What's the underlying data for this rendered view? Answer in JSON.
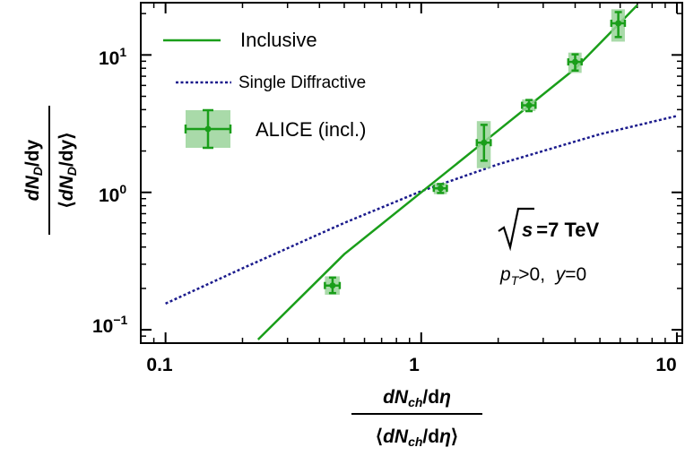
{
  "chart_data": {
    "type": "scatter",
    "xscale": "log",
    "yscale": "log",
    "xlim": [
      0.08,
      10.5
    ],
    "ylim": [
      0.08,
      24
    ],
    "x_ticks": [
      {
        "value": 0.1,
        "label": "0.1"
      },
      {
        "value": 1,
        "label": "1"
      },
      {
        "value": 10,
        "label": "10"
      }
    ],
    "y_ticks": [
      {
        "value": 0.1,
        "base": "10",
        "exp": "−1"
      },
      {
        "value": 1,
        "base": "10",
        "exp": "0"
      },
      {
        "value": 10,
        "base": "10",
        "exp": "1"
      }
    ],
    "xlabel": {
      "numerator": {
        "d": "dN",
        "sub": "ch",
        "rest": "/d",
        "sym": "η"
      },
      "denominator": {
        "open": "⟨",
        "d": "dN",
        "sub": "ch",
        "rest": "/d",
        "sym": "η",
        "close": "⟩"
      }
    },
    "ylabel": {
      "numerator": {
        "d": "dN",
        "sub": "D",
        "rest": "/dy"
      },
      "denominator": {
        "open": "⟨",
        "d": "dN",
        "sub": "D",
        "rest": "/dy",
        "close": "⟩"
      }
    },
    "series": [
      {
        "name": "Inclusive",
        "kind": "line",
        "color": "#1a9e1a",
        "x": [
          0.23,
          0.5,
          1.0,
          2.0,
          4.0,
          7.0
        ],
        "y": [
          0.085,
          0.355,
          1.0,
          2.82,
          7.95,
          23.0
        ]
      },
      {
        "name": "Single Diffractive",
        "kind": "dashed-line",
        "color": "#1a1a8c",
        "x": [
          0.1,
          0.2,
          0.5,
          1.0,
          2.0,
          5.0,
          10.0
        ],
        "y": [
          0.155,
          0.28,
          0.6,
          1.02,
          1.6,
          2.65,
          3.6
        ]
      },
      {
        "name": "ALICE (incl.)",
        "kind": "points",
        "color": "#1a9e1a",
        "box_color": "#9ad49a",
        "points": [
          {
            "x": 0.45,
            "y": 0.21,
            "xerr": 0.03,
            "yerr_lo": 0.025,
            "yerr_hi": 0.03,
            "sys_lo": 0.03,
            "sys_hi": 0.035
          },
          {
            "x": 1.19,
            "y": 1.07,
            "xerr": 0.07,
            "yerr_lo": 0.08,
            "yerr_hi": 0.08,
            "sys_lo": 0.1,
            "sys_hi": 0.1
          },
          {
            "x": 1.76,
            "y": 2.3,
            "xerr": 0.11,
            "yerr_lo": 0.6,
            "yerr_hi": 0.8,
            "sys_lo": 0.8,
            "sys_hi": 1.0
          },
          {
            "x": 2.64,
            "y": 4.3,
            "xerr": 0.16,
            "yerr_lo": 0.4,
            "yerr_hi": 0.4,
            "sys_lo": 0.4,
            "sys_hi": 0.45
          },
          {
            "x": 4.0,
            "y": 8.9,
            "xerr": 0.24,
            "yerr_lo": 1.2,
            "yerr_hi": 1.2,
            "sys_lo": 1.5,
            "sys_hi": 1.5
          },
          {
            "x": 5.9,
            "y": 17.0,
            "xerr": 0.36,
            "yerr_lo": 3.5,
            "yerr_hi": 3.5,
            "sys_lo": 4.5,
            "sys_hi": 4.5
          }
        ]
      }
    ],
    "legend": {
      "placement": "top-left",
      "entries": [
        "Inclusive",
        "Single Diffractive",
        "ALICE (incl.)"
      ]
    },
    "annotations": {
      "energy": {
        "var": "s",
        "text": "=7 TeV"
      },
      "cuts": {
        "p": "p",
        "psub": "T",
        "mid": ">0,  ",
        "y": "y",
        "end": "=0"
      }
    },
    "grid": false
  }
}
